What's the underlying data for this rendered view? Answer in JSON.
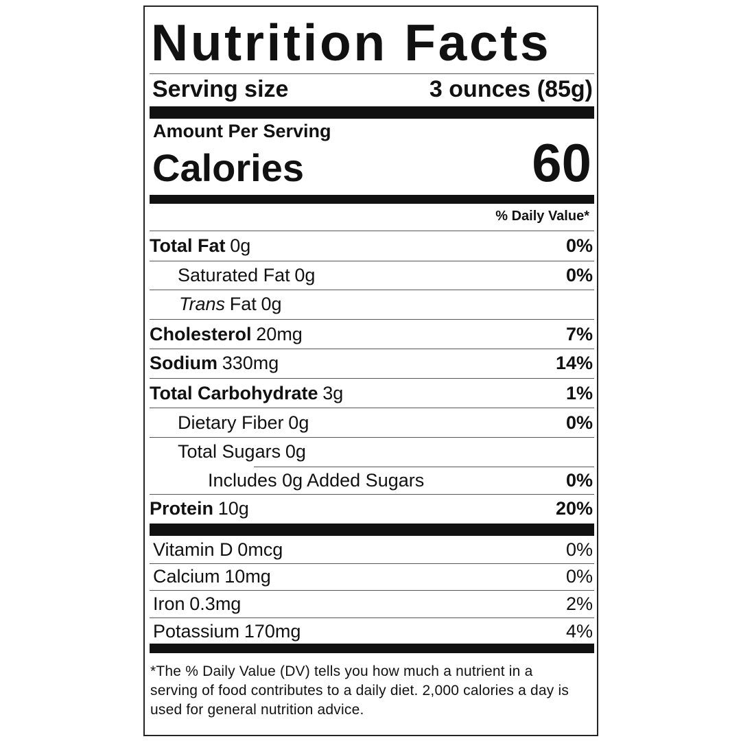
{
  "title": "Nutrition Facts",
  "serving": {
    "label": "Serving size",
    "value": "3 ounces (85g)"
  },
  "amount_per_serving": "Amount Per Serving",
  "calories": {
    "label": "Calories",
    "value": "60"
  },
  "daily_value_header": "% Daily Value*",
  "nutrients": [
    {
      "name": "Total Fat",
      "amount": "0g",
      "dv": "0%"
    },
    {
      "name": "Saturated Fat",
      "amount": "0g",
      "dv": "0%"
    },
    {
      "name_italic": "Trans",
      "name": "Fat",
      "amount": "0g"
    },
    {
      "name": "Cholesterol",
      "amount": "20mg",
      "dv": "7%"
    },
    {
      "name": "Sodium",
      "amount": "330mg",
      "dv": "14%"
    },
    {
      "name": "Total Carbohydrate",
      "amount": "3g",
      "dv": "1%"
    },
    {
      "name": "Dietary Fiber",
      "amount": "0g",
      "dv": "0%"
    },
    {
      "name": "Total Sugars",
      "amount": "0g"
    },
    {
      "name": "Includes 0g Added Sugars",
      "dv": "0%"
    },
    {
      "name": "Protein",
      "amount": "10g",
      "dv": "20%"
    }
  ],
  "vitamins": [
    {
      "name": "Vitamin D",
      "amount": "0mcg",
      "dv": "0%"
    },
    {
      "name": "Calcium",
      "amount": "10mg",
      "dv": "0%"
    },
    {
      "name": "Iron",
      "amount": "0.3mg",
      "dv": "2%"
    },
    {
      "name": "Potassium",
      "amount": "170mg",
      "dv": "4%"
    }
  ],
  "footnote": "*The % Daily Value (DV) tells you how much a nutrient in a serving of food contributes to a daily diet. 2,000 calories a day is used for general nutrition advice."
}
